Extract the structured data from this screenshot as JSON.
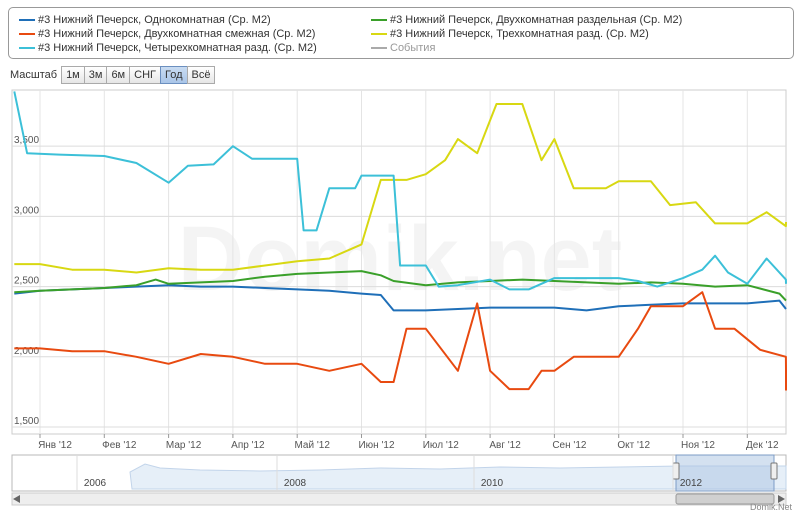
{
  "legend": {
    "items": [
      {
        "label": "#3 Нижний Печерск, Однокомнатная (Ср. М2)",
        "color": "#1f6fb8"
      },
      {
        "label": "#3 Нижний Печерск, Двухкомнатная раздельная (Ср. М2)",
        "color": "#3aa02a"
      },
      {
        "label": "#3 Нижний Печерск, Двухкомнатная смежная (Ср. М2)",
        "color": "#e84a10"
      },
      {
        "label": "#3 Нижний Печерск, Трехкомнатная разд. (Ср. М2)",
        "color": "#d8d812"
      },
      {
        "label": "#3 Нижний Печерск, Четырехкомнатная разд. (Ср. М2)",
        "color": "#3cc0d8"
      },
      {
        "label": "События",
        "color": "#aaaaaa"
      }
    ]
  },
  "toolbar": {
    "label": "Масштаб",
    "buttons": [
      "1м",
      "3м",
      "6м",
      "СНГ",
      "Год",
      "Всё"
    ],
    "active": "Год"
  },
  "watermark": "Domik.net",
  "credit": "Domik.Net",
  "navigator": {
    "years": [
      "2006",
      "2008",
      "2010",
      "2012"
    ]
  },
  "chart_data": {
    "type": "line",
    "title": "",
    "xlabel": "",
    "ylabel": "",
    "x_ticks": [
      "Янв '12",
      "Фев '12",
      "Мар '12",
      "Апр '12",
      "Май '12",
      "Июн '12",
      "Июл '12",
      "Авг '12",
      "Сен '12",
      "Окт '12",
      "Ноя '12",
      "Дек '12"
    ],
    "x_range": [
      0,
      12
    ],
    "y_ticks": [
      "1,500",
      "2,000",
      "2,500",
      "3,000",
      "3,500"
    ],
    "ylim": [
      1450,
      3900
    ],
    "grid": true,
    "series": [
      {
        "name": "#3 Нижний Печерск, Однокомнатная (Ср. М2)",
        "color": "#1f6fb8",
        "points": [
          [
            -0.4,
            2450
          ],
          [
            0,
            2470
          ],
          [
            0.5,
            2480
          ],
          [
            1,
            2490
          ],
          [
            1.5,
            2500
          ],
          [
            2,
            2510
          ],
          [
            2.5,
            2500
          ],
          [
            3,
            2500
          ],
          [
            3.5,
            2490
          ],
          [
            4,
            2480
          ],
          [
            4.5,
            2470
          ],
          [
            5,
            2450
          ],
          [
            5.3,
            2440
          ],
          [
            5.5,
            2330
          ],
          [
            6,
            2330
          ],
          [
            6.5,
            2340
          ],
          [
            7,
            2350
          ],
          [
            7.5,
            2350
          ],
          [
            8,
            2350
          ],
          [
            8.5,
            2330
          ],
          [
            9,
            2360
          ],
          [
            9.5,
            2370
          ],
          [
            10,
            2380
          ],
          [
            10.5,
            2380
          ],
          [
            11,
            2380
          ],
          [
            11.5,
            2400
          ],
          [
            12,
            2340
          ]
        ]
      },
      {
        "name": "#3 Нижний Печерск, Двухкомнатная раздельная (Ср. М2)",
        "color": "#3aa02a",
        "points": [
          [
            -0.4,
            2460
          ],
          [
            0,
            2470
          ],
          [
            0.5,
            2480
          ],
          [
            1,
            2490
          ],
          [
            1.5,
            2510
          ],
          [
            1.8,
            2550
          ],
          [
            2,
            2520
          ],
          [
            2.5,
            2530
          ],
          [
            3,
            2540
          ],
          [
            3.5,
            2570
          ],
          [
            4,
            2590
          ],
          [
            4.5,
            2600
          ],
          [
            5,
            2610
          ],
          [
            5.3,
            2580
          ],
          [
            5.5,
            2540
          ],
          [
            6,
            2510
          ],
          [
            6.5,
            2530
          ],
          [
            7,
            2540
          ],
          [
            7.5,
            2550
          ],
          [
            8,
            2540
          ],
          [
            8.5,
            2530
          ],
          [
            9,
            2520
          ],
          [
            9.5,
            2530
          ],
          [
            10,
            2520
          ],
          [
            10.5,
            2500
          ],
          [
            11,
            2510
          ],
          [
            11.5,
            2450
          ],
          [
            12,
            2400
          ]
        ]
      },
      {
        "name": "#3 Нижний Печерск, Двухкомнатная смежная (Ср. М2)",
        "color": "#e84a10",
        "points": [
          [
            -0.4,
            2060
          ],
          [
            0,
            2060
          ],
          [
            0.5,
            2040
          ],
          [
            1,
            2040
          ],
          [
            1.5,
            2000
          ],
          [
            2,
            1950
          ],
          [
            2.5,
            2020
          ],
          [
            3,
            2000
          ],
          [
            3.5,
            1950
          ],
          [
            4,
            1950
          ],
          [
            4.5,
            1900
          ],
          [
            5,
            1950
          ],
          [
            5.3,
            1820
          ],
          [
            5.5,
            1820
          ],
          [
            5.7,
            2200
          ],
          [
            6,
            2200
          ],
          [
            6.5,
            1900
          ],
          [
            6.8,
            2380
          ],
          [
            7,
            1900
          ],
          [
            7.3,
            1770
          ],
          [
            7.6,
            1770
          ],
          [
            7.8,
            1900
          ],
          [
            8,
            1900
          ],
          [
            8.3,
            2000
          ],
          [
            8.8,
            2000
          ],
          [
            9,
            2000
          ],
          [
            9.3,
            2200
          ],
          [
            9.5,
            2360
          ],
          [
            10,
            2360
          ],
          [
            10.3,
            2460
          ],
          [
            10.5,
            2200
          ],
          [
            10.8,
            2200
          ],
          [
            11.2,
            2050
          ],
          [
            11.6,
            2000
          ],
          [
            11.8,
            1900
          ],
          [
            12,
            1760
          ]
        ]
      },
      {
        "name": "#3 Нижний Печерск, Трехкомнатная разд. (Ср. М2)",
        "color": "#d8d812",
        "points": [
          [
            -0.4,
            2660
          ],
          [
            0,
            2660
          ],
          [
            0.5,
            2620
          ],
          [
            1,
            2620
          ],
          [
            1.5,
            2600
          ],
          [
            2,
            2630
          ],
          [
            2.5,
            2620
          ],
          [
            3,
            2620
          ],
          [
            3.5,
            2650
          ],
          [
            4,
            2680
          ],
          [
            4.5,
            2700
          ],
          [
            5,
            2800
          ],
          [
            5.3,
            3260
          ],
          [
            5.7,
            3260
          ],
          [
            6,
            3300
          ],
          [
            6.3,
            3400
          ],
          [
            6.5,
            3550
          ],
          [
            6.8,
            3450
          ],
          [
            7.1,
            3800
          ],
          [
            7.5,
            3800
          ],
          [
            7.8,
            3400
          ],
          [
            8,
            3550
          ],
          [
            8.3,
            3200
          ],
          [
            8.8,
            3200
          ],
          [
            9,
            3250
          ],
          [
            9.5,
            3250
          ],
          [
            9.8,
            3080
          ],
          [
            10.2,
            3100
          ],
          [
            10.5,
            2950
          ],
          [
            11,
            2950
          ],
          [
            11.3,
            3030
          ],
          [
            11.6,
            2930
          ],
          [
            12,
            2960
          ]
        ]
      },
      {
        "name": "#3 Нижний Печерск, Четырехкомнатная разд. (Ср. М2)",
        "color": "#3cc0d8",
        "points": [
          [
            -0.4,
            3890
          ],
          [
            -0.2,
            3450
          ],
          [
            0.3,
            3440
          ],
          [
            1,
            3430
          ],
          [
            1.5,
            3380
          ],
          [
            2,
            3240
          ],
          [
            2.3,
            3360
          ],
          [
            2.7,
            3370
          ],
          [
            3,
            3500
          ],
          [
            3.3,
            3410
          ],
          [
            3.8,
            3410
          ],
          [
            4,
            3410
          ],
          [
            4.1,
            2900
          ],
          [
            4.3,
            2900
          ],
          [
            4.5,
            3200
          ],
          [
            4.9,
            3200
          ],
          [
            5,
            3290
          ],
          [
            5.5,
            3290
          ],
          [
            5.6,
            2650
          ],
          [
            6,
            2650
          ],
          [
            6.2,
            2500
          ],
          [
            6.5,
            2510
          ],
          [
            7,
            2550
          ],
          [
            7.3,
            2480
          ],
          [
            7.6,
            2480
          ],
          [
            8,
            2560
          ],
          [
            8.5,
            2560
          ],
          [
            9,
            2560
          ],
          [
            9.3,
            2540
          ],
          [
            9.6,
            2500
          ],
          [
            10,
            2560
          ],
          [
            10.3,
            2620
          ],
          [
            10.5,
            2720
          ],
          [
            10.7,
            2600
          ],
          [
            11,
            2520
          ],
          [
            11.3,
            2700
          ],
          [
            11.6,
            2550
          ],
          [
            12,
            2520
          ]
        ]
      }
    ]
  }
}
